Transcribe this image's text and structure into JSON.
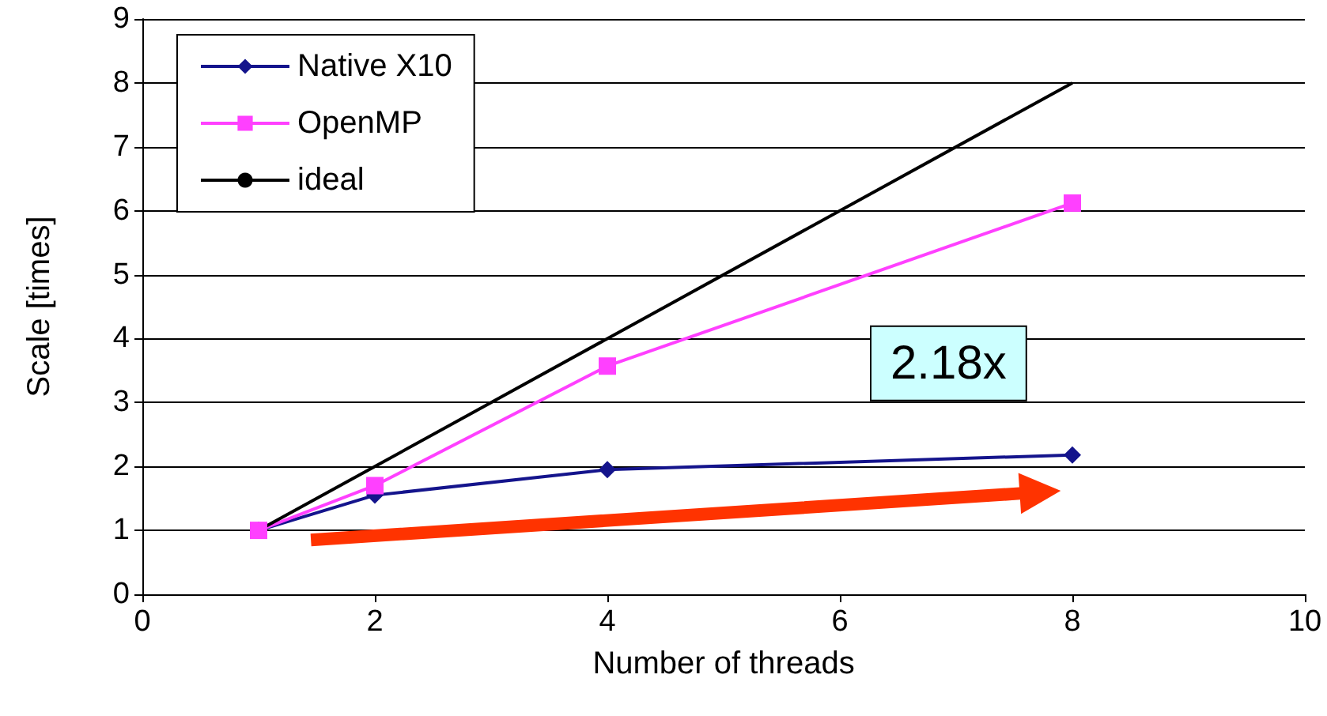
{
  "chart_data": {
    "type": "line",
    "xlabel": "Number of threads",
    "ylabel": "Scale [times]",
    "x": [
      1,
      2,
      4,
      8
    ],
    "series": [
      {
        "name": "Native X10",
        "color": "#14148c",
        "values": [
          1,
          1.55,
          1.95,
          2.18
        ],
        "marker": "diamond"
      },
      {
        "name": "OpenMP",
        "color": "#ff40ff",
        "values": [
          1,
          1.7,
          3.57,
          6.12
        ],
        "marker": "square"
      },
      {
        "name": "ideal",
        "color": "#000000",
        "values": [
          1,
          2,
          4,
          8
        ],
        "marker": "none"
      }
    ],
    "xlim": [
      0,
      10
    ],
    "xticks": [
      0,
      2,
      4,
      6,
      8,
      10
    ],
    "ylim": [
      0,
      9
    ],
    "yticks": [
      0,
      1,
      2,
      3,
      4,
      5,
      6,
      7,
      8,
      9
    ],
    "grid": "y",
    "legend": "top left",
    "line_style": "solid",
    "annotations": [
      {
        "text": "2.18x",
        "x": 8,
        "y": 2.18
      }
    ]
  }
}
